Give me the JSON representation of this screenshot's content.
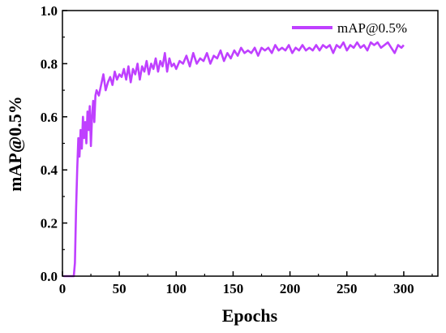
{
  "chart_data": {
    "type": "line",
    "xlabel": "Epochs",
    "ylabel": "mAP@0.5%",
    "xlim": [
      0,
      330
    ],
    "ylim": [
      0.0,
      1.0
    ],
    "x_ticks": [
      "0",
      "50",
      "100",
      "150",
      "200",
      "250",
      "300"
    ],
    "y_ticks": [
      "0.0",
      "0.2",
      "0.4",
      "0.6",
      "0.8",
      "1.0"
    ],
    "grid": false,
    "legend_position": "top-right",
    "series": [
      {
        "name": "mAP@0.5%",
        "color": "#bf40ff",
        "x": [
          1,
          5,
          10,
          11,
          12,
          13,
          14,
          15,
          16,
          17,
          18,
          19,
          20,
          21,
          22,
          23,
          24,
          25,
          26,
          27,
          28,
          29,
          30,
          32,
          34,
          36,
          38,
          40,
          42,
          44,
          46,
          48,
          50,
          52,
          54,
          56,
          58,
          60,
          62,
          64,
          66,
          68,
          70,
          72,
          74,
          76,
          78,
          80,
          82,
          84,
          86,
          88,
          90,
          92,
          94,
          96,
          98,
          100,
          103,
          106,
          109,
          112,
          115,
          118,
          121,
          124,
          127,
          130,
          133,
          136,
          139,
          142,
          145,
          148,
          151,
          154,
          157,
          160,
          163,
          166,
          169,
          172,
          175,
          178,
          181,
          184,
          187,
          190,
          193,
          196,
          199,
          202,
          205,
          208,
          211,
          214,
          217,
          220,
          223,
          226,
          229,
          232,
          235,
          238,
          241,
          244,
          247,
          250,
          253,
          256,
          259,
          262,
          265,
          268,
          271,
          274,
          277,
          280,
          283,
          286,
          289,
          292,
          295,
          298,
          300
        ],
        "values": [
          0.0,
          0.0,
          0.0,
          0.05,
          0.25,
          0.4,
          0.52,
          0.45,
          0.55,
          0.48,
          0.6,
          0.52,
          0.58,
          0.5,
          0.62,
          0.55,
          0.64,
          0.49,
          0.6,
          0.66,
          0.58,
          0.68,
          0.7,
          0.68,
          0.72,
          0.76,
          0.7,
          0.73,
          0.75,
          0.72,
          0.77,
          0.74,
          0.76,
          0.75,
          0.78,
          0.74,
          0.79,
          0.73,
          0.78,
          0.76,
          0.8,
          0.74,
          0.79,
          0.77,
          0.81,
          0.76,
          0.8,
          0.78,
          0.82,
          0.77,
          0.81,
          0.79,
          0.84,
          0.77,
          0.82,
          0.79,
          0.8,
          0.78,
          0.81,
          0.8,
          0.83,
          0.79,
          0.84,
          0.8,
          0.82,
          0.81,
          0.84,
          0.8,
          0.83,
          0.82,
          0.85,
          0.81,
          0.84,
          0.82,
          0.85,
          0.83,
          0.86,
          0.84,
          0.85,
          0.84,
          0.86,
          0.83,
          0.86,
          0.85,
          0.86,
          0.84,
          0.87,
          0.85,
          0.86,
          0.85,
          0.87,
          0.84,
          0.86,
          0.85,
          0.87,
          0.85,
          0.86,
          0.85,
          0.87,
          0.85,
          0.87,
          0.86,
          0.87,
          0.84,
          0.87,
          0.86,
          0.88,
          0.85,
          0.87,
          0.86,
          0.88,
          0.86,
          0.87,
          0.85,
          0.88,
          0.87,
          0.88,
          0.86,
          0.87,
          0.88,
          0.86,
          0.84,
          0.87,
          0.86,
          0.87
        ]
      }
    ]
  }
}
